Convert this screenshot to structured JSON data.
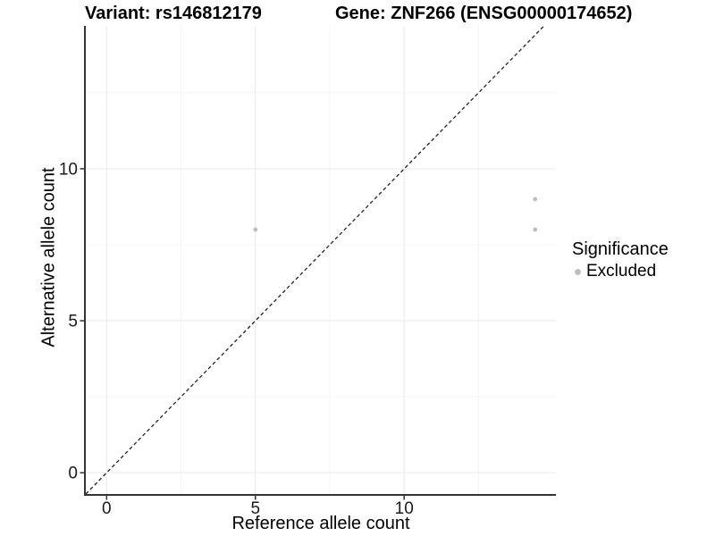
{
  "titles": {
    "left": "Variant: rs146812179",
    "right": "Gene: ZNF266 (ENSG00000174652)"
  },
  "axes": {
    "x": {
      "label": "Reference allele count",
      "tick_labels": [
        "0",
        "5",
        "10"
      ]
    },
    "y": {
      "label": "Alternative allele count",
      "tick_labels": [
        "0",
        "5",
        "10"
      ]
    }
  },
  "legend": {
    "title": "Significance",
    "position": "right",
    "entries": [
      {
        "label": "Excluded",
        "marker": "circle-icon",
        "color": "#bfbfbf"
      }
    ]
  },
  "colors": {
    "background": "#ffffff",
    "point": "#bfbfbf",
    "grid_major": "#e9e9e9",
    "grid_minor": "#f4f4f4",
    "axis_line": "#333333",
    "tick_mark": "#333333",
    "tick_label": "#1a1a1a",
    "text": "#000000",
    "reference_line": "#222222"
  },
  "chart_data": {
    "type": "scatter",
    "title": "Variant: rs146812179 | Gene: ZNF266 (ENSG00000174652)",
    "xlabel": "Reference allele count",
    "ylabel": "Alternative allele count",
    "xlim": [
      -0.7,
      15.1
    ],
    "ylim": [
      -0.7,
      14.7
    ],
    "x_major_ticks": [
      0,
      5,
      10
    ],
    "y_major_ticks": [
      0,
      5,
      10
    ],
    "x_minor_ticks": [
      2.5,
      7.5,
      12.5
    ],
    "y_minor_ticks": [
      2.5,
      7.5,
      12.5
    ],
    "grid": "major+minor",
    "legend_position": "right",
    "point_radius": 2.4,
    "series": [
      {
        "name": "Excluded",
        "color": "#bfbfbf",
        "marker": "circle",
        "points": [
          [
            5,
            8
          ],
          [
            14.4,
            9
          ],
          [
            14.4,
            8
          ]
        ]
      }
    ],
    "reference_line": {
      "kind": "identity",
      "slope": 1,
      "intercept": 0,
      "style": "dashed"
    }
  }
}
